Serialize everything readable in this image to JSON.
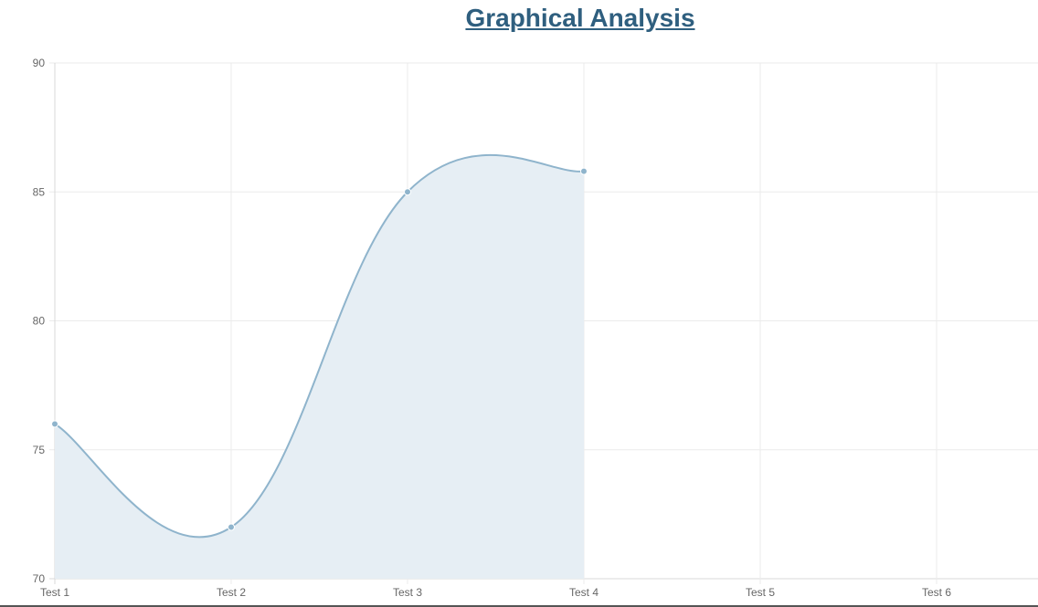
{
  "page": {
    "title": "Graphical Analysis"
  },
  "colors": {
    "title": "#2f5f7f",
    "line": "#8fb4cc",
    "fill": "#e6eef4",
    "point": "#8fb4cc",
    "grid": "#ebebeb",
    "axis": "#d9d9d9"
  },
  "chart_data": {
    "type": "line",
    "title": "",
    "xlabel": "",
    "ylabel": "",
    "categories": [
      "Test 1",
      "Test 2",
      "Test 3",
      "Test 4",
      "Test 5",
      "Test 6"
    ],
    "series": [
      {
        "values": [
          76,
          72,
          85,
          85.8,
          null,
          null
        ]
      }
    ],
    "ylim": [
      70,
      90
    ],
    "yticks": [
      70,
      75,
      80,
      85,
      90
    ],
    "grid": true,
    "fill_area": true,
    "curve": "smooth",
    "legend": "none"
  }
}
